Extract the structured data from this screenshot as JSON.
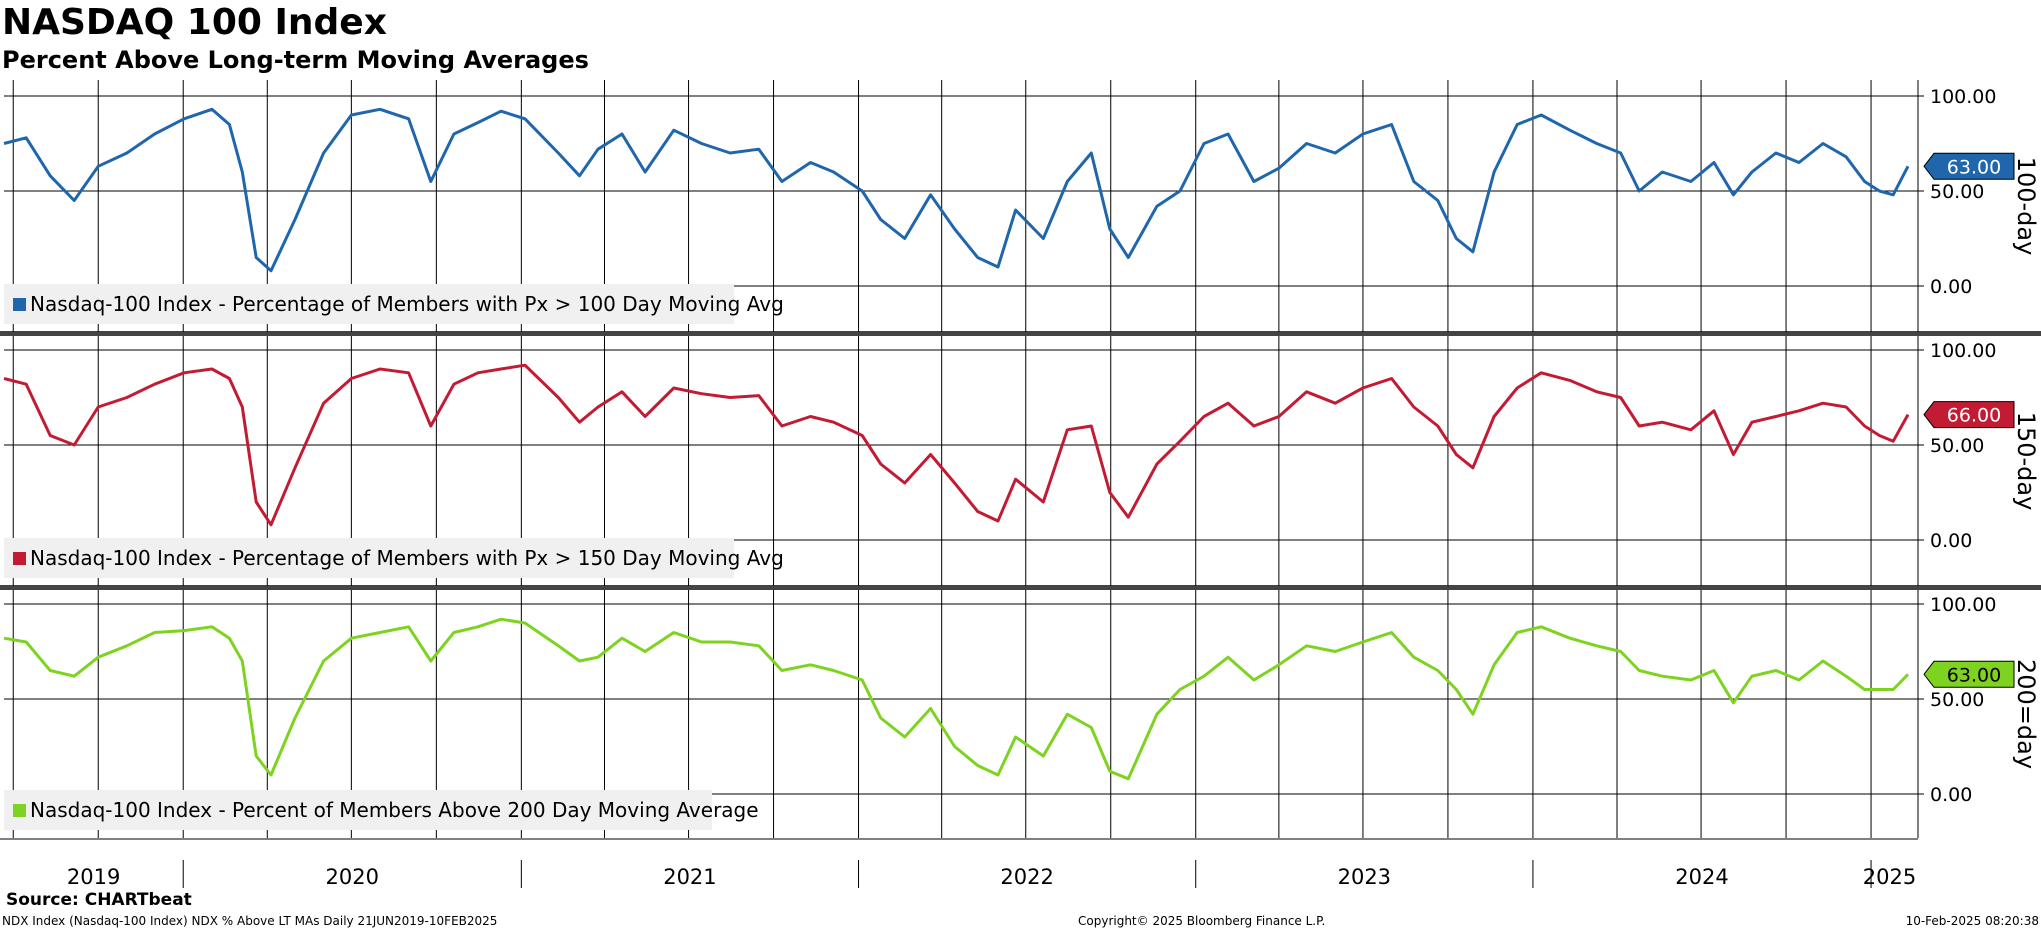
{
  "header": {
    "title": "NASDAQ 100 Index",
    "subtitle": "Percent Above Long-term Moving Averages"
  },
  "footer": {
    "source": "Source: CHARTbeat",
    "description": "NDX Index (Nasdaq-100 Index) NDX % Above LT MAs  Daily 21JUN2019-10FEB2025",
    "copyright": "Copyright© 2025 Bloomberg Finance L.P.",
    "timestamp": "10-Feb-2025 08:20:38"
  },
  "chart_data": {
    "type": "line",
    "x_range": [
      "2019-06-21",
      "2025-02-10"
    ],
    "x_axis_labels": [
      "2019",
      "2020",
      "2021",
      "2022",
      "2023",
      "2024",
      "2025"
    ],
    "ylim": [
      -10,
      110
    ],
    "y_ticks": [
      "100.00",
      "50.00",
      "0.00"
    ],
    "grid": true,
    "legend_position": "bottom-left",
    "panels": [
      {
        "axis_label": "100-day",
        "legend": "Nasdaq-100 Index - Percentage of Members with Px > 100 Day Moving Avg",
        "color": "#1f66ad",
        "last_value_label": "63.00",
        "series": {
          "name": "Nasdaq-100 Index - Percentage of Members with Px > 100 Day Moving Avg",
          "x": [
            "2019-06-21",
            "2019-07-15",
            "2019-08-10",
            "2019-09-05",
            "2019-10-01",
            "2019-11-01",
            "2019-12-01",
            "2020-01-02",
            "2020-02-01",
            "2020-02-20",
            "2020-03-05",
            "2020-03-20",
            "2020-04-05",
            "2020-05-01",
            "2020-06-01",
            "2020-07-01",
            "2020-08-01",
            "2020-09-01",
            "2020-09-25",
            "2020-10-20",
            "2020-11-15",
            "2020-12-10",
            "2021-01-05",
            "2021-02-10",
            "2021-03-05",
            "2021-03-25",
            "2021-04-20",
            "2021-05-15",
            "2021-06-15",
            "2021-07-15",
            "2021-08-15",
            "2021-09-15",
            "2021-10-10",
            "2021-11-10",
            "2021-12-05",
            "2022-01-05",
            "2022-01-25",
            "2022-02-20",
            "2022-03-20",
            "2022-04-15",
            "2022-05-10",
            "2022-06-01",
            "2022-06-20",
            "2022-07-20",
            "2022-08-15",
            "2022-09-10",
            "2022-09-30",
            "2022-10-20",
            "2022-11-20",
            "2022-12-15",
            "2023-01-10",
            "2023-02-05",
            "2023-03-05",
            "2023-04-01",
            "2023-05-01",
            "2023-06-01",
            "2023-07-01",
            "2023-08-01",
            "2023-08-25",
            "2023-09-20",
            "2023-10-10",
            "2023-10-28",
            "2023-11-20",
            "2023-12-15",
            "2024-01-10",
            "2024-02-10",
            "2024-03-10",
            "2024-04-05",
            "2024-04-25",
            "2024-05-20",
            "2024-06-20",
            "2024-07-15",
            "2024-08-05",
            "2024-08-25",
            "2024-09-20",
            "2024-10-15",
            "2024-11-10",
            "2024-12-05",
            "2024-12-25",
            "2025-01-10",
            "2025-01-25",
            "2025-02-10"
          ],
          "y": [
            75,
            78,
            58,
            45,
            63,
            70,
            80,
            88,
            93,
            85,
            60,
            15,
            8,
            35,
            70,
            90,
            93,
            88,
            55,
            80,
            86,
            92,
            88,
            70,
            58,
            72,
            80,
            60,
            82,
            75,
            70,
            72,
            55,
            65,
            60,
            50,
            35,
            25,
            48,
            30,
            15,
            10,
            40,
            25,
            55,
            70,
            30,
            15,
            42,
            50,
            75,
            80,
            55,
            62,
            75,
            70,
            80,
            85,
            55,
            45,
            25,
            18,
            60,
            85,
            90,
            82,
            75,
            70,
            50,
            60,
            55,
            65,
            48,
            60,
            70,
            65,
            75,
            68,
            55,
            50,
            48,
            63
          ]
        }
      },
      {
        "axis_label": "150-day",
        "legend": "Nasdaq-100 Index - Percentage of Members with Px > 150 Day Moving Avg",
        "color": "#c21b33",
        "last_value_label": "66.00",
        "series": {
          "name": "Nasdaq-100 Index - Percentage of Members with Px > 150 Day Moving Avg",
          "x": [
            "2019-06-21",
            "2019-07-15",
            "2019-08-10",
            "2019-09-05",
            "2019-10-01",
            "2019-11-01",
            "2019-12-01",
            "2020-01-02",
            "2020-02-01",
            "2020-02-20",
            "2020-03-05",
            "2020-03-20",
            "2020-04-05",
            "2020-05-01",
            "2020-06-01",
            "2020-07-01",
            "2020-08-01",
            "2020-09-01",
            "2020-09-25",
            "2020-10-20",
            "2020-11-15",
            "2020-12-10",
            "2021-01-05",
            "2021-02-10",
            "2021-03-05",
            "2021-03-25",
            "2021-04-20",
            "2021-05-15",
            "2021-06-15",
            "2021-07-15",
            "2021-08-15",
            "2021-09-15",
            "2021-10-10",
            "2021-11-10",
            "2021-12-05",
            "2022-01-05",
            "2022-01-25",
            "2022-02-20",
            "2022-03-20",
            "2022-04-15",
            "2022-05-10",
            "2022-06-01",
            "2022-06-20",
            "2022-07-20",
            "2022-08-15",
            "2022-09-10",
            "2022-09-30",
            "2022-10-20",
            "2022-11-20",
            "2022-12-15",
            "2023-01-10",
            "2023-02-05",
            "2023-03-05",
            "2023-04-01",
            "2023-05-01",
            "2023-06-01",
            "2023-07-01",
            "2023-08-01",
            "2023-08-25",
            "2023-09-20",
            "2023-10-10",
            "2023-10-28",
            "2023-11-20",
            "2023-12-15",
            "2024-01-10",
            "2024-02-10",
            "2024-03-10",
            "2024-04-05",
            "2024-04-25",
            "2024-05-20",
            "2024-06-20",
            "2024-07-15",
            "2024-08-05",
            "2024-08-25",
            "2024-09-20",
            "2024-10-15",
            "2024-11-10",
            "2024-12-05",
            "2024-12-25",
            "2025-01-10",
            "2025-01-25",
            "2025-02-10"
          ],
          "y": [
            85,
            82,
            55,
            50,
            70,
            75,
            82,
            88,
            90,
            85,
            70,
            20,
            8,
            38,
            72,
            85,
            90,
            88,
            60,
            82,
            88,
            90,
            92,
            75,
            62,
            70,
            78,
            65,
            80,
            77,
            75,
            76,
            60,
            65,
            62,
            55,
            40,
            30,
            45,
            30,
            15,
            10,
            32,
            20,
            58,
            60,
            25,
            12,
            40,
            52,
            65,
            72,
            60,
            65,
            78,
            72,
            80,
            85,
            70,
            60,
            45,
            38,
            65,
            80,
            88,
            84,
            78,
            75,
            60,
            62,
            58,
            68,
            45,
            62,
            65,
            68,
            72,
            70,
            60,
            55,
            52,
            66
          ]
        }
      },
      {
        "axis_label": "200=day",
        "legend": "Nasdaq-100 Index - Percent of Members Above 200 Day Moving Average",
        "color": "#7ed321",
        "last_value_label": "63.00",
        "series": {
          "name": "Nasdaq-100 Index - Percent of Members Above 200 Day Moving Average",
          "x": [
            "2019-06-21",
            "2019-07-15",
            "2019-08-10",
            "2019-09-05",
            "2019-10-01",
            "2019-11-01",
            "2019-12-01",
            "2020-01-02",
            "2020-02-01",
            "2020-02-20",
            "2020-03-05",
            "2020-03-20",
            "2020-04-05",
            "2020-05-01",
            "2020-06-01",
            "2020-07-01",
            "2020-08-01",
            "2020-09-01",
            "2020-09-25",
            "2020-10-20",
            "2020-11-15",
            "2020-12-10",
            "2021-01-05",
            "2021-02-10",
            "2021-03-05",
            "2021-03-25",
            "2021-04-20",
            "2021-05-15",
            "2021-06-15",
            "2021-07-15",
            "2021-08-15",
            "2021-09-15",
            "2021-10-10",
            "2021-11-10",
            "2021-12-05",
            "2022-01-05",
            "2022-01-25",
            "2022-02-20",
            "2022-03-20",
            "2022-04-15",
            "2022-05-10",
            "2022-06-01",
            "2022-06-20",
            "2022-07-20",
            "2022-08-15",
            "2022-09-10",
            "2022-09-30",
            "2022-10-20",
            "2022-11-20",
            "2022-12-15",
            "2023-01-10",
            "2023-02-05",
            "2023-03-05",
            "2023-04-01",
            "2023-05-01",
            "2023-06-01",
            "2023-07-01",
            "2023-08-01",
            "2023-08-25",
            "2023-09-20",
            "2023-10-10",
            "2023-10-28",
            "2023-11-20",
            "2023-12-15",
            "2024-01-10",
            "2024-02-10",
            "2024-03-10",
            "2024-04-05",
            "2024-04-25",
            "2024-05-20",
            "2024-06-20",
            "2024-07-15",
            "2024-08-05",
            "2024-08-25",
            "2024-09-20",
            "2024-10-15",
            "2024-11-10",
            "2024-12-05",
            "2024-12-25",
            "2025-01-10",
            "2025-01-25",
            "2025-02-10"
          ],
          "y": [
            82,
            80,
            65,
            62,
            72,
            78,
            85,
            86,
            88,
            82,
            70,
            20,
            10,
            40,
            70,
            82,
            85,
            88,
            70,
            85,
            88,
            92,
            90,
            78,
            70,
            72,
            82,
            75,
            85,
            80,
            80,
            78,
            65,
            68,
            65,
            60,
            40,
            30,
            45,
            25,
            15,
            10,
            30,
            20,
            42,
            35,
            12,
            8,
            42,
            55,
            62,
            72,
            60,
            68,
            78,
            75,
            80,
            85,
            72,
            65,
            55,
            42,
            68,
            85,
            88,
            82,
            78,
            75,
            65,
            62,
            60,
            65,
            48,
            62,
            65,
            60,
            70,
            62,
            55,
            55,
            55,
            63
          ]
        }
      }
    ]
  }
}
